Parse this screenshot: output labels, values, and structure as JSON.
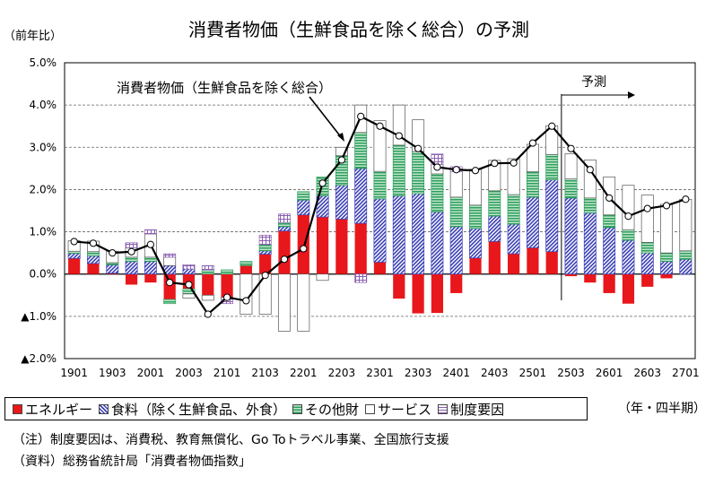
{
  "chart_data": {
    "type": "bar",
    "title": "消費者物価（生鮮食品を除く総合）の予測",
    "ylabel": "（前年比）",
    "xunit": "（年・四半期）",
    "ylim": [
      -2.0,
      5.0
    ],
    "yticks": [
      5.0,
      4.0,
      3.0,
      2.0,
      1.0,
      0.0,
      -1.0,
      -2.0
    ],
    "ytick_labels": [
      "5.0%",
      "4.0%",
      "3.0%",
      "2.0%",
      "1.0%",
      "0.0%",
      "▲1.0%",
      "▲2.0%"
    ],
    "categories": [
      "1901",
      "1902",
      "1903",
      "1904",
      "2001",
      "2002",
      "2003",
      "2004",
      "2101",
      "2102",
      "2103",
      "2104",
      "2201",
      "2202",
      "2203",
      "2204",
      "2301",
      "2302",
      "2303",
      "2304",
      "2401",
      "2402",
      "2403",
      "2404",
      "2501",
      "2502",
      "2503",
      "2504",
      "2601",
      "2602",
      "2603",
      "2604",
      "2701"
    ],
    "xtick_labels": [
      "1901",
      "1903",
      "2001",
      "2003",
      "2101",
      "2103",
      "2201",
      "2203",
      "2301",
      "2303",
      "2401",
      "2403",
      "2501",
      "2503",
      "2601",
      "2603",
      "2701"
    ],
    "series": [
      {
        "name": "エネルギー",
        "color": "#e8171b",
        "values": [
          0.37,
          0.25,
          0.02,
          -0.25,
          -0.2,
          -0.6,
          -0.35,
          -0.5,
          -0.55,
          0.2,
          0.47,
          1.02,
          1.4,
          1.35,
          1.3,
          1.2,
          0.28,
          -0.58,
          -0.93,
          -0.92,
          -0.45,
          0.38,
          0.77,
          0.48,
          0.62,
          0.53,
          -0.05,
          -0.2,
          -0.45,
          -0.7,
          -0.3,
          -0.1,
          0.0
        ]
      },
      {
        "name": "食料（除く生鮮食品、外食）",
        "color": "#3a3fb4",
        "values": [
          0.12,
          0.18,
          0.2,
          0.3,
          0.3,
          0.2,
          0.12,
          0.0,
          0.0,
          0.0,
          0.08,
          0.1,
          0.35,
          0.5,
          0.8,
          1.3,
          1.5,
          1.85,
          1.9,
          1.47,
          1.12,
          0.7,
          0.6,
          0.7,
          1.2,
          1.7,
          1.8,
          1.45,
          1.1,
          0.8,
          0.5,
          0.3,
          0.35
        ]
      },
      {
        "name": "その他財",
        "color": "#2e9e5b",
        "values": [
          0.05,
          0.1,
          0.05,
          0.1,
          0.1,
          -0.1,
          -0.12,
          0.1,
          0.1,
          0.1,
          0.15,
          0.1,
          0.2,
          0.45,
          0.7,
          0.85,
          0.65,
          1.2,
          1.0,
          0.9,
          0.7,
          0.55,
          0.6,
          0.7,
          0.6,
          0.6,
          0.45,
          0.35,
          0.3,
          0.25,
          0.25,
          0.2,
          0.2
        ]
      },
      {
        "name": "サービス",
        "color": "#ffffff",
        "values": [
          0.25,
          0.25,
          0.27,
          0.22,
          0.55,
          0.2,
          -0.1,
          -0.12,
          -0.05,
          -0.95,
          -0.95,
          -1.35,
          -1.35,
          -0.15,
          0.2,
          0.65,
          1.2,
          0.95,
          0.75,
          0.22,
          0.6,
          0.85,
          0.72,
          0.85,
          0.65,
          0.68,
          0.6,
          0.9,
          0.9,
          1.05,
          1.12,
          1.15,
          1.22
        ]
      },
      {
        "name": "制度要因",
        "color": "#a070c0",
        "values": [
          0,
          0,
          0,
          0.12,
          0.1,
          0.08,
          0.1,
          0.1,
          -0.1,
          0,
          0.22,
          0.2,
          0,
          0,
          0,
          -0.2,
          0,
          0,
          0,
          0.25,
          0.12,
          0,
          0,
          0,
          0,
          0,
          0,
          0,
          0,
          0,
          0,
          0,
          0
        ]
      },
      {
        "name": "消費者物価（生鮮食品を除く総合）",
        "color": "#000000",
        "values": [
          0.77,
          0.73,
          0.5,
          0.53,
          0.7,
          -0.2,
          -0.25,
          -0.95,
          -0.55,
          -0.63,
          -0.03,
          0.35,
          0.6,
          2.15,
          2.7,
          3.73,
          3.5,
          3.27,
          2.97,
          2.53,
          2.47,
          2.45,
          2.62,
          2.63,
          3.1,
          3.5,
          2.97,
          2.47,
          1.8,
          1.37,
          1.55,
          1.62,
          1.77
        ]
      }
    ],
    "annotations": {
      "line_label": "消費者物価（生鮮食品を除く総合）",
      "forecast_label": "予測",
      "forecast_start_index": 25
    },
    "grid": true
  },
  "notes": {
    "note1": "（注）制度要因は、消費税、教育無償化、Go Toトラベル事業、全国旅行支援",
    "note2": "（資料）総務省統計局「消費者物価指数」"
  }
}
